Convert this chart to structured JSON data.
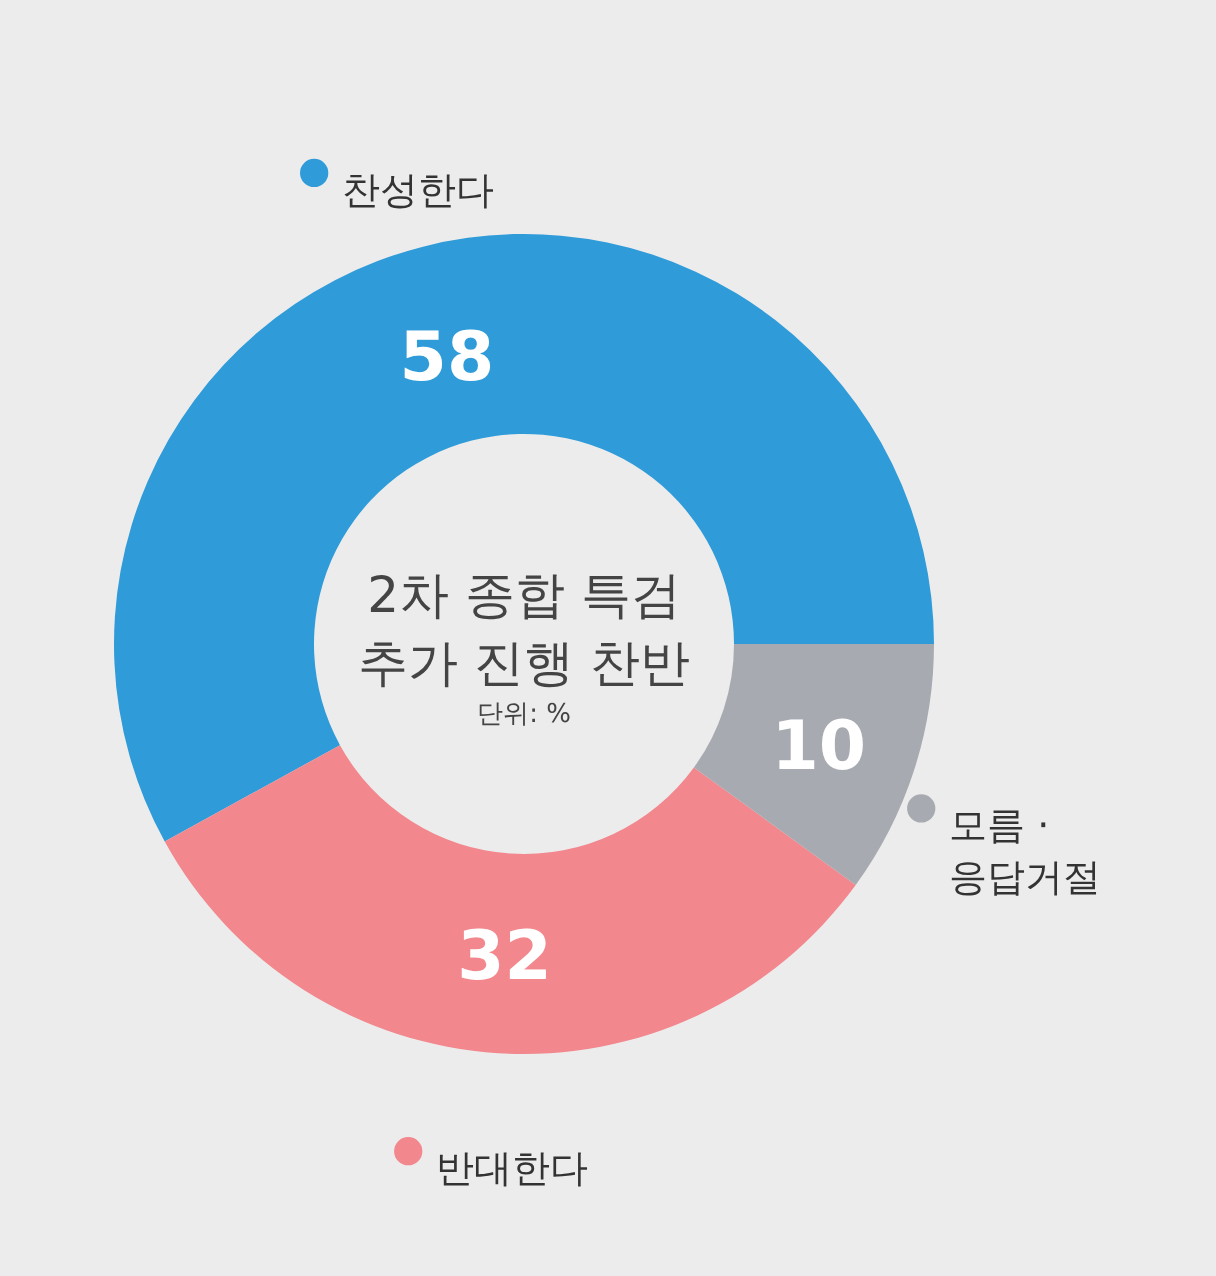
{
  "chart_data": {
    "type": "donut",
    "title": "2차 종합 특검 추가 진행 찬반",
    "subtitle": "단위: %",
    "categories": [
      "찬성한다",
      "반대한다",
      "모름 · 응답거절"
    ],
    "values": [
      58,
      32,
      10
    ],
    "colors": [
      "#2f9bd9",
      "#f2878d",
      "#a7abb1"
    ],
    "data_labels": true,
    "legend": "bottom right"
  }
}
